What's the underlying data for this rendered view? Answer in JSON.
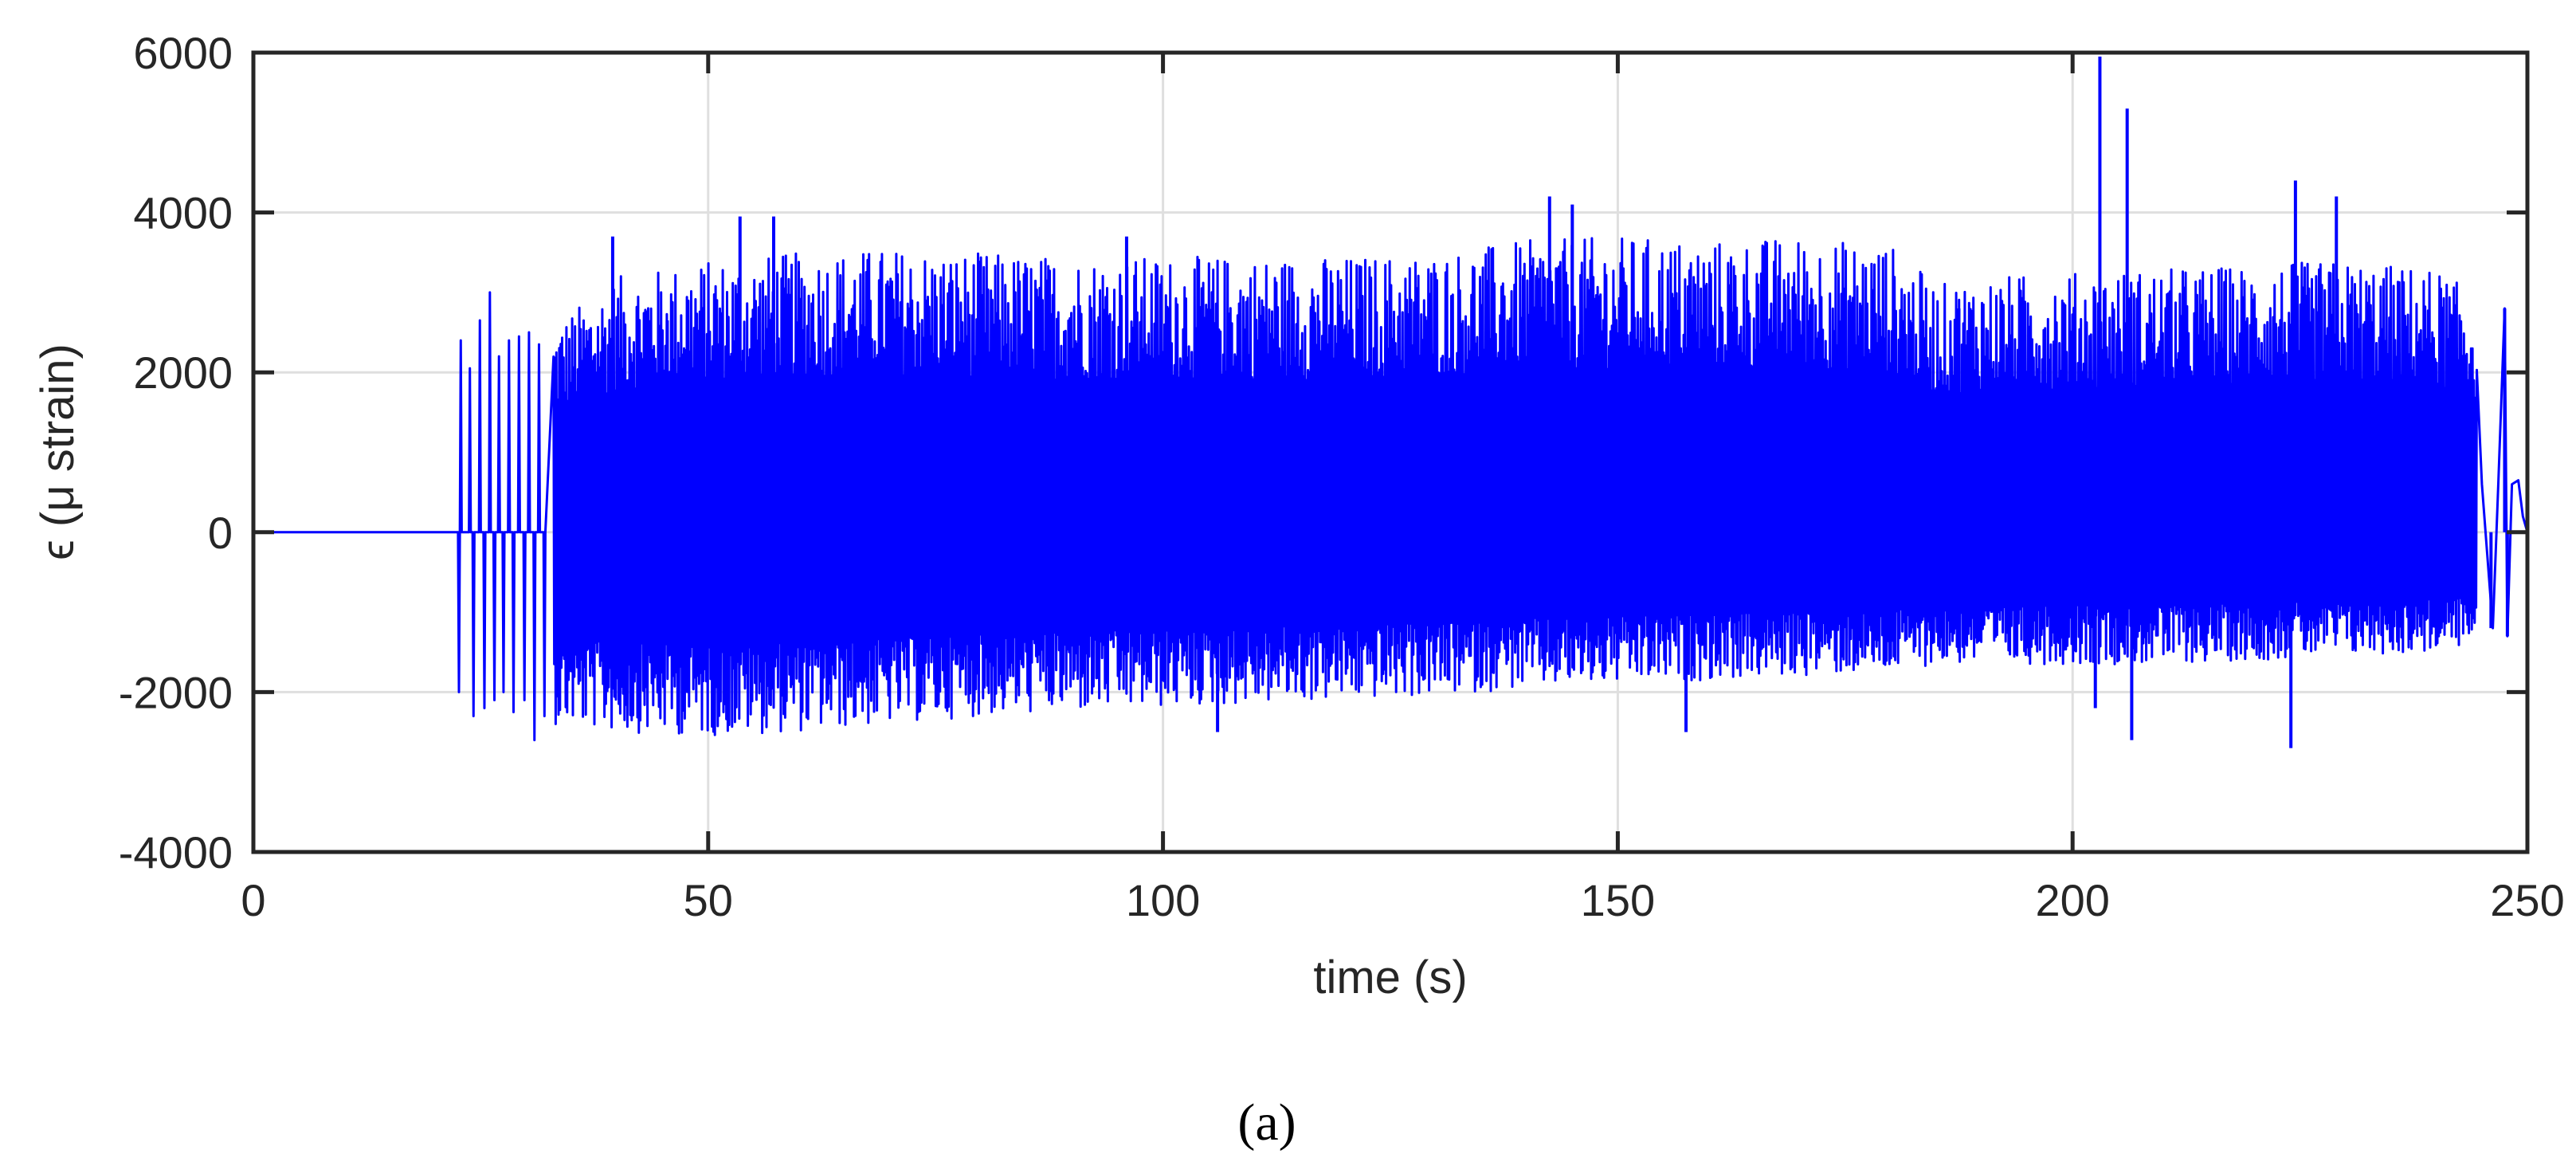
{
  "chart_data": {
    "type": "line",
    "xlabel": "time (s)",
    "ylabel": "ϵ (μ strain)",
    "xlim": [
      0,
      250
    ],
    "ylim": [
      -4000,
      6000
    ],
    "xticks": [
      0,
      50,
      100,
      150,
      200,
      250
    ],
    "yticks": [
      -4000,
      -2000,
      0,
      2000,
      4000,
      6000
    ],
    "grid": true,
    "caption": "(a)",
    "series": [
      {
        "color": "#0000ff",
        "description_points": [
          {
            "x": 0,
            "y": 0
          },
          {
            "x": 22,
            "y": 0
          },
          {
            "x": 22.5,
            "y": -2000
          },
          {
            "x": 22.7,
            "y": 2400
          },
          {
            "x": 40,
            "y": 3300
          },
          {
            "x": 40,
            "y": -2500
          },
          {
            "x": 55,
            "y": 3600
          },
          {
            "x": 55,
            "y": -2600
          },
          {
            "x": 100,
            "y": 3500
          },
          {
            "x": 100,
            "y": -2200
          },
          {
            "x": 145,
            "y": 3900
          },
          {
            "x": 145,
            "y": -1900
          },
          {
            "x": 178,
            "y": 3800
          },
          {
            "x": 185,
            "y": 3200
          },
          {
            "x": 185,
            "y": -1700
          },
          {
            "x": 203,
            "y": 5950
          },
          {
            "x": 206,
            "y": 5300
          },
          {
            "x": 206,
            "y": -2600
          },
          {
            "x": 224,
            "y": -2700
          },
          {
            "x": 240,
            "y": 3400
          },
          {
            "x": 244,
            "y": -1400
          },
          {
            "x": 246,
            "y": 600
          },
          {
            "x": 250,
            "y": 0
          }
        ],
        "envelope": [
          {
            "x": 33,
            "upper": 2600,
            "lower": -2400
          },
          {
            "x": 40,
            "upper": 3200,
            "lower": -2500
          },
          {
            "x": 50,
            "upper": 3400,
            "lower": -2550
          },
          {
            "x": 60,
            "upper": 3500,
            "lower": -2500
          },
          {
            "x": 70,
            "upper": 3550,
            "lower": -2400
          },
          {
            "x": 80,
            "upper": 3500,
            "lower": -2300
          },
          {
            "x": 90,
            "upper": 3450,
            "lower": -2250
          },
          {
            "x": 100,
            "upper": 3450,
            "lower": -2200
          },
          {
            "x": 110,
            "upper": 3450,
            "lower": -2150
          },
          {
            "x": 120,
            "upper": 3450,
            "lower": -2100
          },
          {
            "x": 130,
            "upper": 3500,
            "lower": -2050
          },
          {
            "x": 140,
            "upper": 3650,
            "lower": -1950
          },
          {
            "x": 150,
            "upper": 3700,
            "lower": -1900
          },
          {
            "x": 160,
            "upper": 3650,
            "lower": -1850
          },
          {
            "x": 170,
            "upper": 3700,
            "lower": -1800
          },
          {
            "x": 180,
            "upper": 3600,
            "lower": -1750
          },
          {
            "x": 185,
            "upper": 3100,
            "lower": -1650
          },
          {
            "x": 190,
            "upper": 3200,
            "lower": -1650
          },
          {
            "x": 200,
            "upper": 3250,
            "lower": -1650
          },
          {
            "x": 210,
            "upper": 3300,
            "lower": -1650
          },
          {
            "x": 220,
            "upper": 3350,
            "lower": -1600
          },
          {
            "x": 230,
            "upper": 3400,
            "lower": -1550
          },
          {
            "x": 240,
            "upper": 3300,
            "lower": -1500
          },
          {
            "x": 244,
            "upper": 3000,
            "lower": -1400
          }
        ],
        "spikes": [
          {
            "x": 22.8,
            "y": 2400
          },
          {
            "x": 22.6,
            "y": -2000
          },
          {
            "x": 23.8,
            "y": 2050
          },
          {
            "x": 24.2,
            "y": -2300
          },
          {
            "x": 24.9,
            "y": 2650
          },
          {
            "x": 25.4,
            "y": -2200
          },
          {
            "x": 26.0,
            "y": 3000
          },
          {
            "x": 26.5,
            "y": -2100
          },
          {
            "x": 27.0,
            "y": 2200
          },
          {
            "x": 27.5,
            "y": -2000
          },
          {
            "x": 28.1,
            "y": 2400
          },
          {
            "x": 28.6,
            "y": -2250
          },
          {
            "x": 29.2,
            "y": 2450
          },
          {
            "x": 29.8,
            "y": -2100
          },
          {
            "x": 30.3,
            "y": 2500
          },
          {
            "x": 30.9,
            "y": -2600
          },
          {
            "x": 31.4,
            "y": 2350
          },
          {
            "x": 32.0,
            "y": -2300
          },
          {
            "x": 39.5,
            "y": 3700
          },
          {
            "x": 45.5,
            "y": 2650
          },
          {
            "x": 53.5,
            "y": 3950
          },
          {
            "x": 57.2,
            "y": 3950
          },
          {
            "x": 96,
            "y": 3700
          },
          {
            "x": 106,
            "y": -2500
          },
          {
            "x": 142.5,
            "y": 4200
          },
          {
            "x": 145,
            "y": 4100
          },
          {
            "x": 157.5,
            "y": -2500
          },
          {
            "x": 187.5,
            "y": 2800
          },
          {
            "x": 203,
            "y": 5950
          },
          {
            "x": 206,
            "y": 5300
          },
          {
            "x": 202.5,
            "y": -2200
          },
          {
            "x": 206.5,
            "y": -2600
          },
          {
            "x": 224,
            "y": -2700
          },
          {
            "x": 224.5,
            "y": 4400
          },
          {
            "x": 229,
            "y": 4200
          },
          {
            "x": 246,
            "y": -1200
          },
          {
            "x": 247.5,
            "y": 2800
          },
          {
            "x": 247.8,
            "y": -1300
          }
        ]
      }
    ]
  }
}
